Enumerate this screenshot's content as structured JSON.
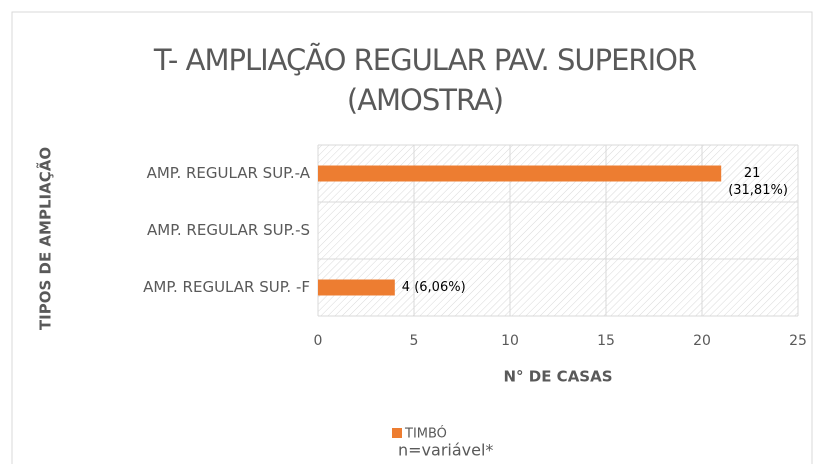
{
  "chart_data": {
    "type": "bar",
    "orientation": "horizontal",
    "title": "T- AMPLIAÇÃO REGULAR PAV. SUPERIOR (AMOSTRA)",
    "categories": [
      "AMP. REGULAR SUP.-A",
      "AMP. REGULAR SUP.-S",
      "AMP. REGULAR SUP. -F"
    ],
    "series": [
      {
        "name": "TIMBÓ",
        "color": "#ed7d31",
        "values": [
          21,
          null,
          4
        ],
        "value_labels": [
          "21 (31,81%)",
          null,
          "4 (6,06%)"
        ]
      }
    ],
    "xlabel": "N° DE CASAS",
    "ylabel": "TIPOS DE AMPLIAÇÃO",
    "xlim": [
      0,
      25
    ],
    "xticks": [
      0,
      5,
      10,
      15,
      20,
      25
    ],
    "grid": true,
    "legend": "bottom",
    "footnote": "n=variável*"
  }
}
